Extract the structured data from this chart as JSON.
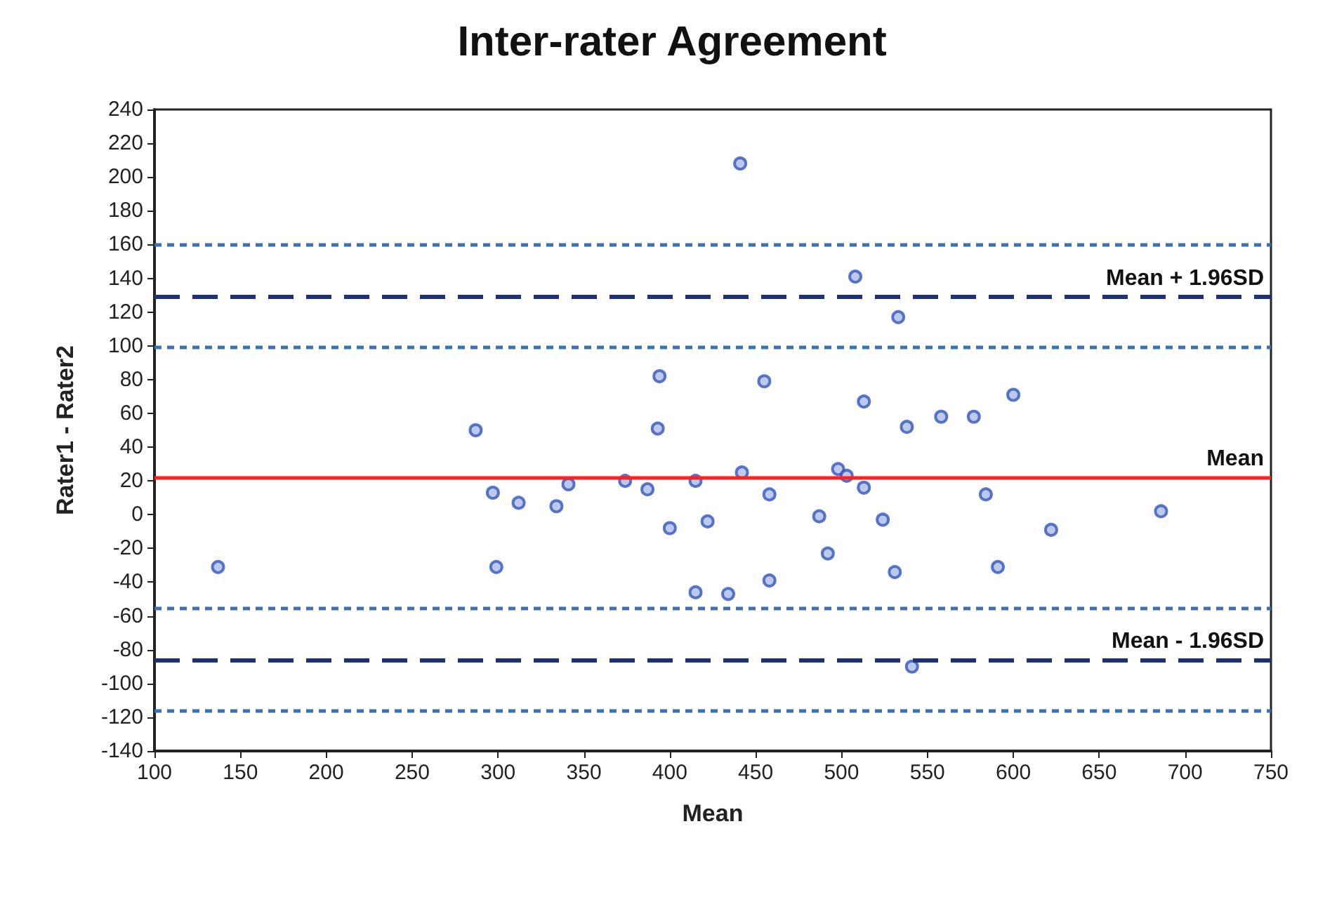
{
  "chart_data": {
    "type": "scatter",
    "title": "Inter-rater Agreement",
    "xlabel": "Mean",
    "ylabel": "Rater1 - Rater2",
    "x": [
      137,
      287,
      297,
      299,
      312,
      334,
      341,
      374,
      387,
      393,
      394,
      400,
      415,
      415,
      422,
      434,
      441,
      442,
      455,
      458,
      458,
      487,
      492,
      498,
      503,
      508,
      513,
      513,
      524,
      531,
      533,
      538,
      541,
      558,
      577,
      584,
      591,
      600,
      622,
      686
    ],
    "series": [
      {
        "color": "#3355bb",
        "values": [
          -31,
          50,
          13,
          -31,
          7,
          5,
          18,
          20,
          15,
          51,
          82,
          -8,
          20,
          -46,
          -4,
          -47,
          208,
          25,
          79,
          12,
          -39,
          -1,
          -23,
          27,
          23,
          141,
          16,
          67,
          -3,
          -34,
          117,
          52,
          -90,
          58,
          58,
          12,
          -31,
          71,
          -9,
          2
        ]
      }
    ],
    "marker": "circle",
    "xlim": [
      100,
      750
    ],
    "xticks": [
      100,
      150,
      200,
      250,
      300,
      350,
      400,
      450,
      500,
      550,
      600,
      650,
      700,
      750
    ],
    "ylim": [
      -140,
      240
    ],
    "yticks": [
      -140,
      -120,
      -100,
      -80,
      -60,
      -40,
      -20,
      0,
      20,
      40,
      60,
      80,
      100,
      120,
      140,
      160,
      180,
      200,
      220,
      240
    ],
    "grid": false,
    "ref_lines": [
      {
        "axis": "y",
        "value": 160,
        "label": null,
        "color": "#3d72b0",
        "line_style": "dotted"
      },
      {
        "axis": "y",
        "value": 129,
        "label": "Mean + 1.96SD",
        "color": "#1f3170",
        "line_style": "dashed"
      },
      {
        "axis": "y",
        "value": 99,
        "label": null,
        "color": "#3d72b0",
        "line_style": "dotted"
      },
      {
        "axis": "y",
        "value": 22,
        "label": "Mean",
        "color": "#ff2020",
        "line_style": "solid"
      },
      {
        "axis": "y",
        "value": -55,
        "label": null,
        "color": "#3d72b0",
        "line_style": "dotted"
      },
      {
        "axis": "y",
        "value": -86,
        "label": "Mean - 1.96SD",
        "color": "#1f3170",
        "line_style": "dashed"
      },
      {
        "axis": "y",
        "value": -116,
        "label": null,
        "color": "#3d72b0",
        "line_style": "dotted"
      }
    ]
  }
}
